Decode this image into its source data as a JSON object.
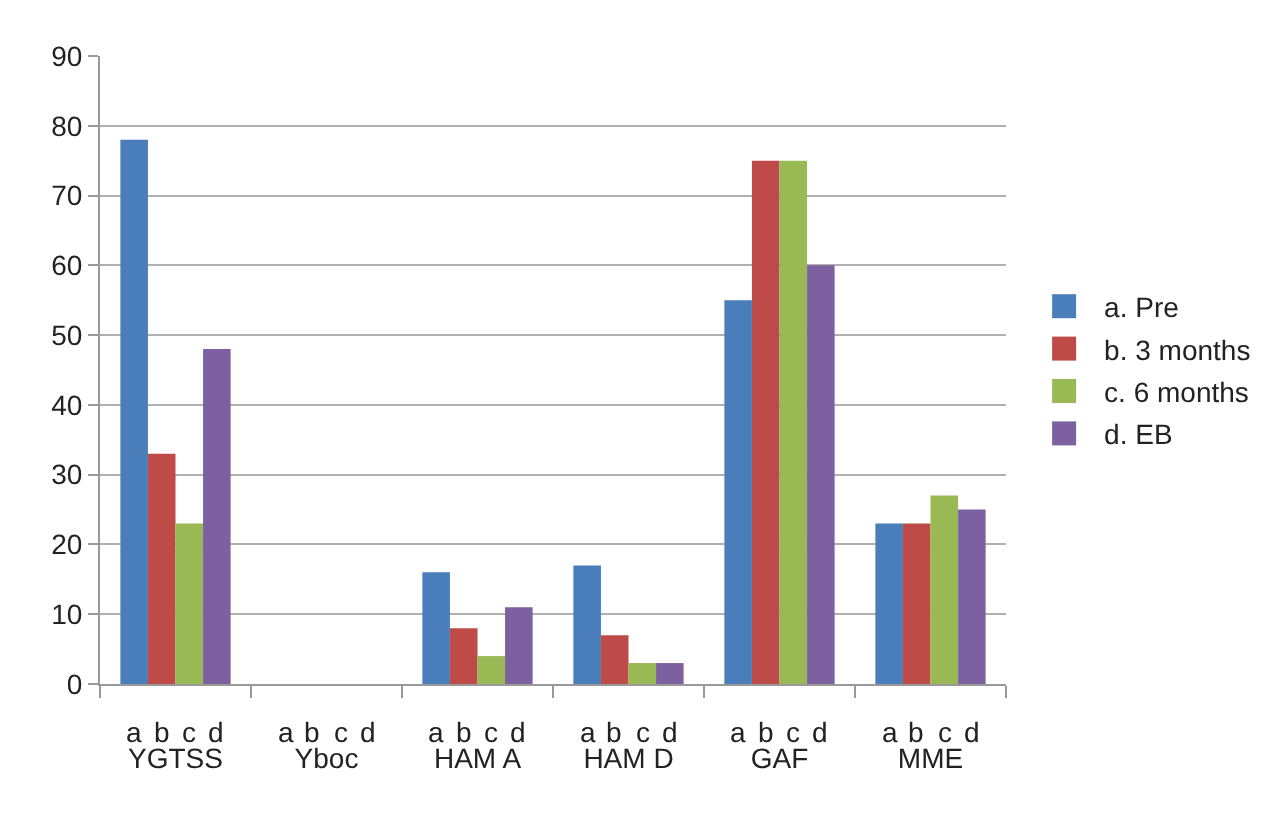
{
  "chart_data": {
    "type": "bar",
    "categories": [
      "YGTSS",
      "Yboc",
      "HAM A",
      "HAM D",
      "GAF",
      "MME"
    ],
    "series": [
      {
        "name": "a. Pre",
        "color": "#4a7ebb",
        "values": [
          78,
          null,
          16,
          17,
          55,
          23
        ]
      },
      {
        "name": "b. 3 months",
        "color": "#be4b48",
        "values": [
          33,
          null,
          8,
          7,
          75,
          23
        ]
      },
      {
        "name": "c. 6 months",
        "color": "#98b954",
        "values": [
          23,
          null,
          4,
          3,
          75,
          27
        ]
      },
      {
        "name": "d. EB",
        "color": "#7d60a0",
        "values": [
          48,
          null,
          11,
          3,
          60,
          25
        ]
      }
    ],
    "annotations": [
      "a b c d",
      "a b c d",
      "a b c d",
      "a b c d",
      "a b c d",
      "a b c d"
    ],
    "ylim": [
      0,
      90
    ],
    "yticks": [
      0,
      10,
      20,
      30,
      40,
      50,
      60,
      70,
      80,
      90
    ],
    "grid": "y",
    "legend": "right"
  }
}
